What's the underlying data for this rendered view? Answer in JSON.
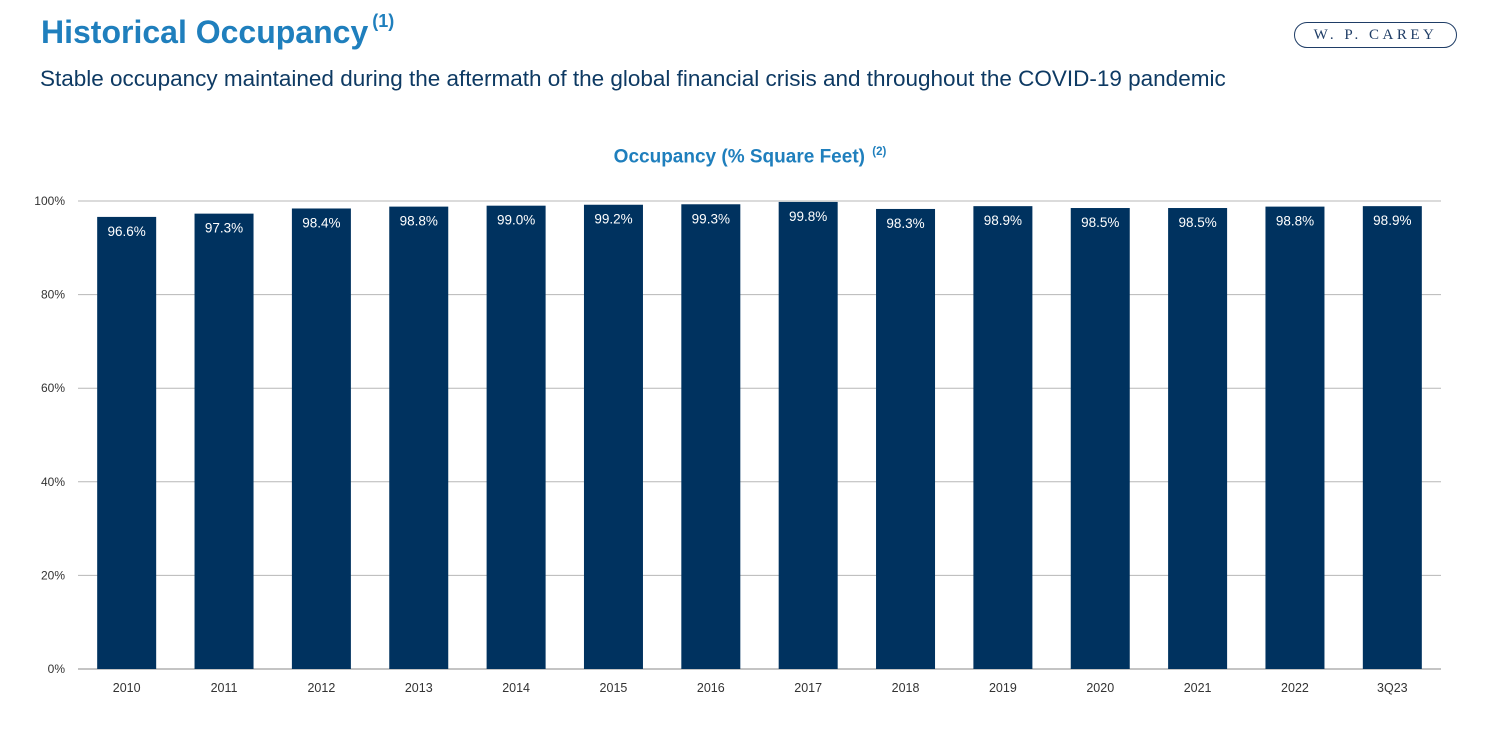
{
  "header": {
    "title": "Historical Occupancy",
    "title_footnote": "(1)",
    "subtitle": "Stable occupancy maintained during the aftermath of the global financial crisis and throughout the COVID-19 pandemic"
  },
  "brand": {
    "logo_text": "W. P. CAREY"
  },
  "colors": {
    "accent": "#1f7fbd",
    "bar": "#00325f",
    "text_dark": "#0e3a63",
    "grid": "#b7b7b7"
  },
  "chart_data": {
    "type": "bar",
    "title": "Occupancy (% Square Feet)",
    "title_footnote": "(2)",
    "categories": [
      "2010",
      "2011",
      "2012",
      "2013",
      "2014",
      "2015",
      "2016",
      "2017",
      "2018",
      "2019",
      "2020",
      "2021",
      "2022",
      "3Q23"
    ],
    "values": [
      96.6,
      97.3,
      98.4,
      98.8,
      99.0,
      99.2,
      99.3,
      99.8,
      98.3,
      98.9,
      98.5,
      98.5,
      98.8,
      98.9
    ],
    "data_labels": [
      "96.6%",
      "97.3%",
      "98.4%",
      "98.8%",
      "99.0%",
      "99.2%",
      "99.3%",
      "99.8%",
      "98.3%",
      "98.9%",
      "98.5%",
      "98.5%",
      "98.8%",
      "98.9%"
    ],
    "ylim": [
      0,
      100
    ],
    "yticks": [
      0,
      20,
      40,
      60,
      80,
      100
    ],
    "ytick_labels": [
      "0%",
      "20%",
      "40%",
      "60%",
      "80%",
      "100%"
    ],
    "grid": true,
    "xlabel": "",
    "ylabel": ""
  }
}
